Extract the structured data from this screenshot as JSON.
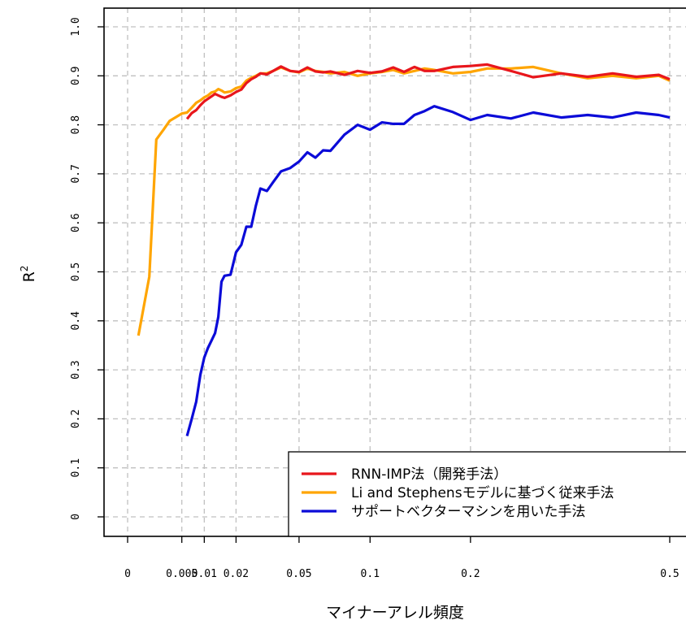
{
  "chart_data": {
    "type": "line",
    "xlabel": "マイナーアレル頻度",
    "ylabel": "R",
    "ylabel_sup": "2",
    "ylim": [
      0,
      1.0
    ],
    "x_ticks": [
      {
        "value": 0,
        "label": "0"
      },
      {
        "value": 0.005,
        "label": "0.005"
      },
      {
        "value": 0.01,
        "label": "0.01"
      },
      {
        "value": 0.02,
        "label": "0.02"
      },
      {
        "value": 0.05,
        "label": "0.05"
      },
      {
        "value": 0.1,
        "label": "0.1"
      },
      {
        "value": 0.2,
        "label": "0.2"
      },
      {
        "value": 0.5,
        "label": "0.5"
      }
    ],
    "y_ticks": [
      {
        "value": 0,
        "label": "0"
      },
      {
        "value": 0.1,
        "label": "0.1"
      },
      {
        "value": 0.2,
        "label": "0.2"
      },
      {
        "value": 0.3,
        "label": "0.3"
      },
      {
        "value": 0.4,
        "label": "0.4"
      },
      {
        "value": 0.5,
        "label": "0.5"
      },
      {
        "value": 0.6,
        "label": "0.6"
      },
      {
        "value": 0.7,
        "label": "0.7"
      },
      {
        "value": 0.8,
        "label": "0.8"
      },
      {
        "value": 0.9,
        "label": "0.9"
      },
      {
        "value": 1.0,
        "label": "1.0"
      }
    ],
    "grid": true,
    "legend_position": "bottom-right",
    "series": [
      {
        "name": "Li and Stephensモデルに基づく従来手法",
        "color": "#ffa500",
        "x": [
          0.0002,
          0.0008,
          0.0014,
          0.0022,
          0.003,
          0.004,
          0.005,
          0.006,
          0.007,
          0.008,
          0.009,
          0.01,
          0.011,
          0.012,
          0.013,
          0.014,
          0.015,
          0.016,
          0.018,
          0.02,
          0.022,
          0.024,
          0.026,
          0.028,
          0.03,
          0.033,
          0.036,
          0.04,
          0.045,
          0.05,
          0.055,
          0.06,
          0.065,
          0.07,
          0.08,
          0.09,
          0.1,
          0.11,
          0.12,
          0.13,
          0.14,
          0.15,
          0.16,
          0.18,
          0.2,
          0.22,
          0.25,
          0.28,
          0.32,
          0.36,
          0.4,
          0.44,
          0.48,
          0.5
        ],
        "y": [
          0.37,
          0.49,
          0.77,
          0.79,
          0.808,
          0.816,
          0.823,
          0.825,
          0.835,
          0.845,
          0.85,
          0.856,
          0.86,
          0.866,
          0.868,
          0.873,
          0.87,
          0.866,
          0.868,
          0.875,
          0.878,
          0.89,
          0.896,
          0.9,
          0.905,
          0.905,
          0.91,
          0.917,
          0.91,
          0.907,
          0.915,
          0.91,
          0.908,
          0.905,
          0.908,
          0.9,
          0.905,
          0.908,
          0.912,
          0.905,
          0.91,
          0.915,
          0.912,
          0.905,
          0.908,
          0.915,
          0.915,
          0.918,
          0.905,
          0.895,
          0.9,
          0.895,
          0.9,
          0.89
        ]
      },
      {
        "name": "RNN-IMP法（開発手法）",
        "color": "#e8161c",
        "x": [
          0.006,
          0.007,
          0.008,
          0.009,
          0.01,
          0.011,
          0.012,
          0.013,
          0.014,
          0.015,
          0.016,
          0.018,
          0.02,
          0.022,
          0.024,
          0.026,
          0.028,
          0.03,
          0.033,
          0.036,
          0.04,
          0.045,
          0.05,
          0.055,
          0.06,
          0.065,
          0.07,
          0.08,
          0.09,
          0.1,
          0.11,
          0.12,
          0.13,
          0.14,
          0.15,
          0.16,
          0.18,
          0.2,
          0.22,
          0.25,
          0.28,
          0.32,
          0.36,
          0.4,
          0.44,
          0.48,
          0.5
        ],
        "y": [
          0.812,
          0.824,
          0.83,
          0.84,
          0.848,
          0.853,
          0.858,
          0.863,
          0.86,
          0.857,
          0.855,
          0.86,
          0.867,
          0.872,
          0.885,
          0.893,
          0.898,
          0.905,
          0.903,
          0.91,
          0.919,
          0.91,
          0.908,
          0.917,
          0.909,
          0.907,
          0.909,
          0.902,
          0.91,
          0.906,
          0.909,
          0.917,
          0.908,
          0.918,
          0.91,
          0.91,
          0.918,
          0.92,
          0.923,
          0.91,
          0.897,
          0.905,
          0.898,
          0.905,
          0.898,
          0.902,
          0.893
        ]
      },
      {
        "name": "サポートベクターマシンを用いた手法",
        "color": "#0b0bd8",
        "x": [
          0.006,
          0.007,
          0.008,
          0.009,
          0.01,
          0.011,
          0.012,
          0.013,
          0.014,
          0.015,
          0.016,
          0.018,
          0.02,
          0.022,
          0.024,
          0.026,
          0.028,
          0.03,
          0.033,
          0.036,
          0.04,
          0.045,
          0.05,
          0.055,
          0.06,
          0.065,
          0.07,
          0.08,
          0.09,
          0.1,
          0.11,
          0.12,
          0.13,
          0.14,
          0.15,
          0.16,
          0.18,
          0.2,
          0.22,
          0.25,
          0.28,
          0.32,
          0.36,
          0.4,
          0.44,
          0.48,
          0.5
        ],
        "y": [
          0.165,
          0.2,
          0.235,
          0.29,
          0.325,
          0.345,
          0.36,
          0.375,
          0.408,
          0.48,
          0.492,
          0.494,
          0.54,
          0.555,
          0.592,
          0.592,
          0.635,
          0.67,
          0.665,
          0.683,
          0.705,
          0.712,
          0.725,
          0.744,
          0.733,
          0.748,
          0.747,
          0.78,
          0.8,
          0.79,
          0.805,
          0.802,
          0.802,
          0.82,
          0.828,
          0.838,
          0.826,
          0.81,
          0.82,
          0.813,
          0.825,
          0.815,
          0.82,
          0.815,
          0.825,
          0.82,
          0.815
        ]
      }
    ],
    "legend": [
      {
        "label": "RNN-IMP法（開発手法）",
        "color": "#e8161c"
      },
      {
        "label": "Li and Stephensモデルに基づく従来手法",
        "color": "#ffa500"
      },
      {
        "label": "サポートベクターマシンを用いた手法",
        "color": "#0b0bd8"
      }
    ]
  }
}
